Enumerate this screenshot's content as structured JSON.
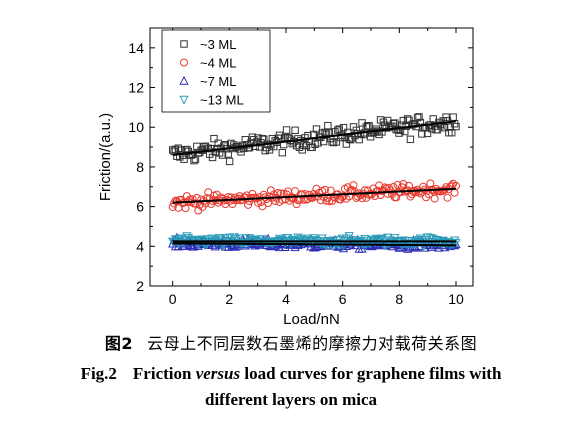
{
  "figure": {
    "caption_cn_label": "图2",
    "caption_cn_text": "云母上不同层数石墨烯的摩擦力对载荷关系图",
    "caption_en_label": "Fig.2",
    "caption_en_part1": "Friction ",
    "caption_en_italic": "versus",
    "caption_en_part2": " load curves for graphene films with",
    "caption_en_line2": "different layers on mica"
  },
  "chart_data": {
    "type": "scatter",
    "xlabel": "Load/nN",
    "ylabel": "Friction/(a.u.)",
    "xlim": [
      -0.8,
      10.6
    ],
    "ylim": [
      2,
      15
    ],
    "xticks": [
      0,
      2,
      4,
      6,
      8,
      10
    ],
    "yticks": [
      2,
      4,
      6,
      8,
      10,
      12,
      14
    ],
    "legend_position": "top-left",
    "grid": false,
    "fit_lines": true,
    "series": [
      {
        "name": "~3 ML",
        "marker": "square",
        "color": "#333333",
        "points_per_series": 200,
        "fit": {
          "slope": 0.17,
          "intercept": 8.6
        },
        "noise": 0.5
      },
      {
        "name": "~4 ML",
        "marker": "circle",
        "color": "#e8392d",
        "points_per_series": 200,
        "fit": {
          "slope": 0.07,
          "intercept": 6.2
        },
        "noise": 0.35
      },
      {
        "name": "~7 ML",
        "marker": "triangle-up",
        "color": "#2b2bb5",
        "points_per_series": 200,
        "fit": {
          "slope": -0.01,
          "intercept": 4.15
        },
        "noise": 0.22
      },
      {
        "name": "~13 ML",
        "marker": "triangle-down",
        "color": "#2a9cb8",
        "points_per_series": 200,
        "fit": {
          "slope": 0.0,
          "intercept": 4.25
        },
        "noise": 0.22
      }
    ]
  }
}
